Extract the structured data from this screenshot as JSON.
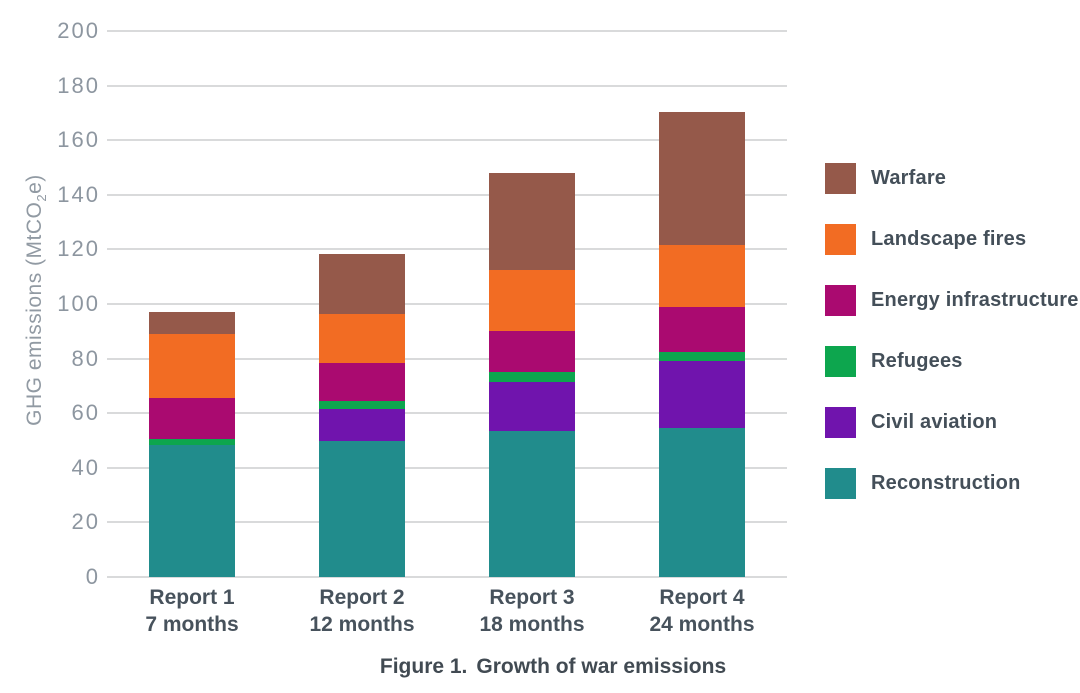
{
  "chart_data": {
    "type": "bar",
    "stacked": true,
    "title": "Figure 1. Growth of war emissions",
    "caption": {
      "label": "Figure 1.",
      "text": "Growth of war emissions"
    },
    "ylabel": {
      "prefix": "GHG emissions (MtCO",
      "sub": "2",
      "suffix": "e)"
    },
    "ylabel_plain": "GHG emissions (MtCO2e)",
    "xlabel": "",
    "categories": [
      {
        "line1": "Report 1",
        "line2": "7 months"
      },
      {
        "line1": "Report 2",
        "line2": "12 months"
      },
      {
        "line1": "Report 3",
        "line2": "18 months"
      },
      {
        "line1": "Report 4",
        "line2": "24 months"
      }
    ],
    "series": [
      {
        "name": "Reconstruction",
        "color": "#218c8c",
        "values": [
          48.5,
          50.0,
          53.5,
          54.5
        ]
      },
      {
        "name": "Civil aviation",
        "color": "#7014ad",
        "values": [
          0.0,
          11.5,
          18.0,
          24.5
        ]
      },
      {
        "name": "Refugees",
        "color": "#0da64e",
        "values": [
          2.0,
          3.0,
          3.5,
          3.5
        ]
      },
      {
        "name": "Energy infrastructure",
        "color": "#aa0a70",
        "values": [
          15.0,
          14.0,
          15.0,
          16.5
        ]
      },
      {
        "name": "Landscape fires",
        "color": "#f26c23",
        "values": [
          23.5,
          18.0,
          22.5,
          22.5
        ]
      },
      {
        "name": "Warfare",
        "color": "#95594a",
        "values": [
          8.0,
          22.0,
          35.5,
          49.0
        ]
      }
    ],
    "totals": [
      97.0,
      118.5,
      148.0,
      170.5
    ],
    "y_axis": {
      "min": 0,
      "max": 200,
      "step": 20,
      "ticks": [
        0,
        20,
        40,
        60,
        80,
        100,
        120,
        140,
        160,
        180,
        200
      ]
    },
    "grid": true,
    "legend_position": "right",
    "legend_order": [
      "Warfare",
      "Landscape fires",
      "Energy infrastructure",
      "Refugees",
      "Civil aviation",
      "Reconstruction"
    ],
    "colors": {
      "gridline": "#d9dadb",
      "tick_label": "#8d96a0",
      "axis_title": "#919aa3",
      "category_label": "#47525c",
      "legend_label": "#444f59",
      "caption": "#414a52"
    }
  }
}
